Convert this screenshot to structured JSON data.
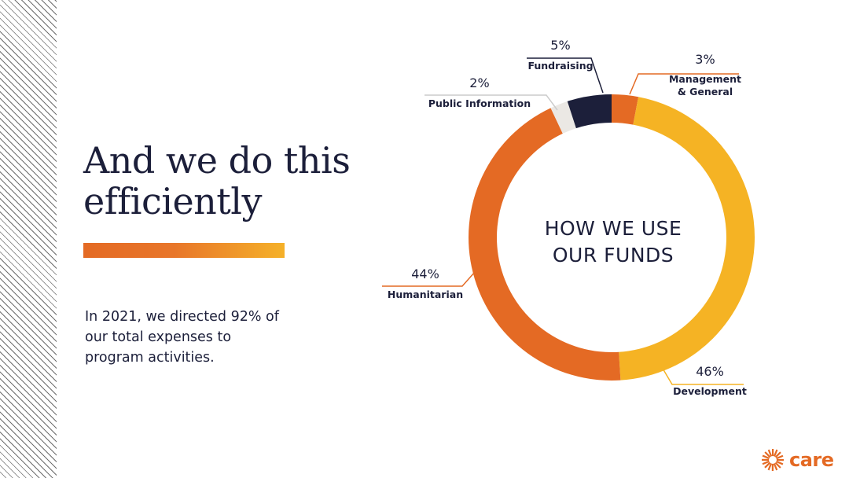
{
  "headline": "And we do this efficiently",
  "subtext": "In 2021, we directed 92% of our total expenses to program activities.",
  "logo": {
    "text": "care",
    "icon": "starburst-logo-icon",
    "color": "#e46a24"
  },
  "chart_data": {
    "type": "pie",
    "center_title_line1": "HOW WE USE",
    "center_title_line2": "OUR FUNDS",
    "slices": [
      {
        "label": "Management & General",
        "label_line1": "Management",
        "label_line2": "& General",
        "value": 3,
        "pct_label": "3%",
        "color": "#e46a24"
      },
      {
        "label": "Development",
        "value": 46,
        "pct_label": "46%",
        "color": "#f5b324"
      },
      {
        "label": "Humanitarian",
        "value": 44,
        "pct_label": "44%",
        "color": "#e46a24"
      },
      {
        "label": "Public Information",
        "value": 2,
        "pct_label": "2%",
        "color": "#ebe8e4"
      },
      {
        "label": "Fundraising",
        "value": 5,
        "pct_label": "5%",
        "color": "#1c1f3a"
      }
    ],
    "leader_colors": [
      "#e46a24",
      "#f5b324",
      "#e46a24",
      "#cccccc",
      "#1c1f3a"
    ]
  }
}
